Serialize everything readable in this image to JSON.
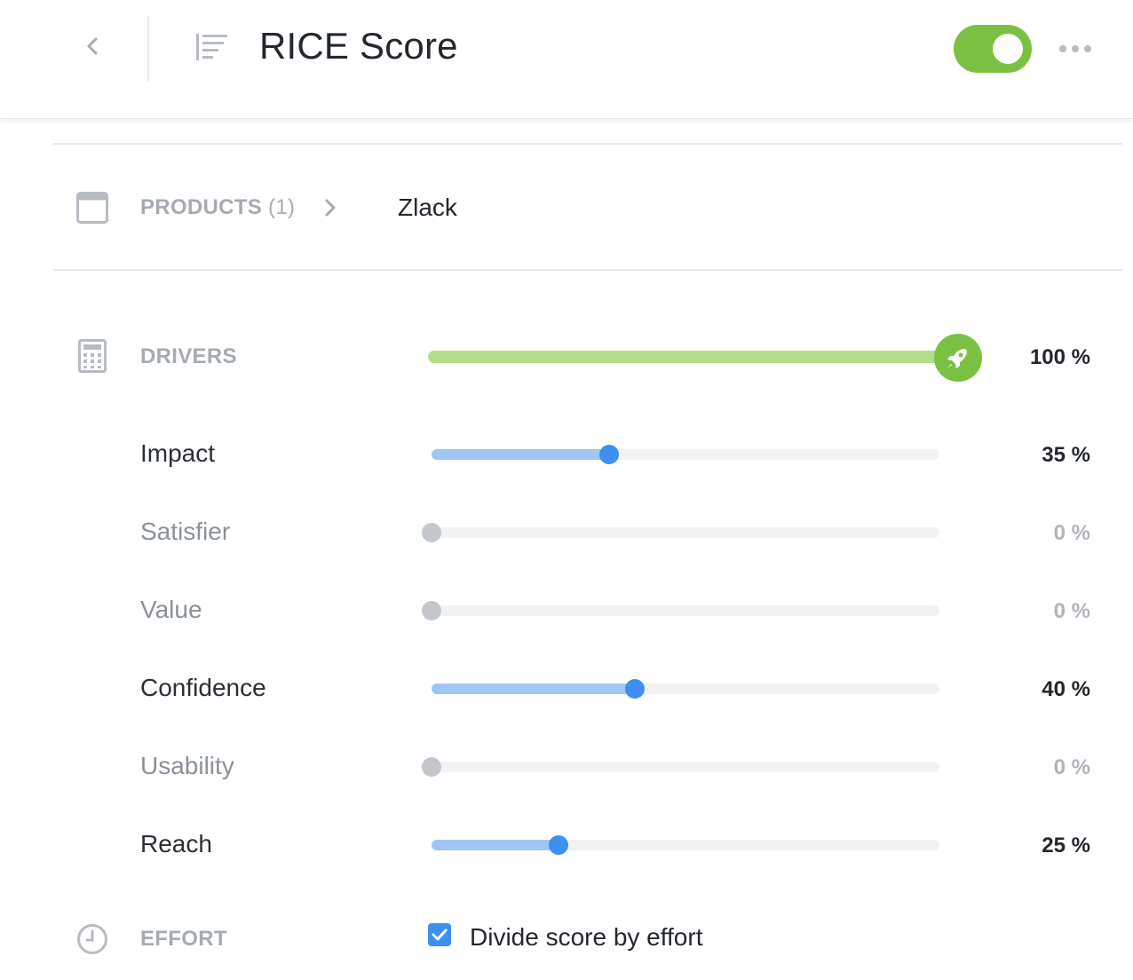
{
  "header": {
    "title": "RICE Score",
    "toggle_on": true,
    "toggle_color": "#7ac143"
  },
  "products": {
    "label": "PRODUCTS",
    "count": "(1)",
    "selected": "Zlack"
  },
  "drivers": {
    "label": "DRIVERS",
    "total_percent": 100,
    "total_text": "100 %",
    "total_color": "#7ac143",
    "items": [
      {
        "label": "Impact",
        "value": 35,
        "text": "35 %"
      },
      {
        "label": "Satisfier",
        "value": 0,
        "text": "0 %"
      },
      {
        "label": "Value",
        "value": 0,
        "text": "0 %"
      },
      {
        "label": "Confidence",
        "value": 40,
        "text": "40 %"
      },
      {
        "label": "Usability",
        "value": 0,
        "text": "0 %"
      },
      {
        "label": "Reach",
        "value": 25,
        "text": "25 %"
      }
    ],
    "accent_color": "#3d8ff0",
    "fill_color": "#9fc5f5"
  },
  "effort": {
    "label": "EFFORT",
    "checkbox_checked": true,
    "checkbox_label": "Divide score by effort"
  },
  "icons": {
    "back": "chevron-left-icon",
    "list": "list-lines-icon",
    "more": "more-dots-icon",
    "products": "window-icon",
    "drivers": "calculator-icon",
    "rocket": "rocket-icon",
    "effort": "clock-icon"
  }
}
